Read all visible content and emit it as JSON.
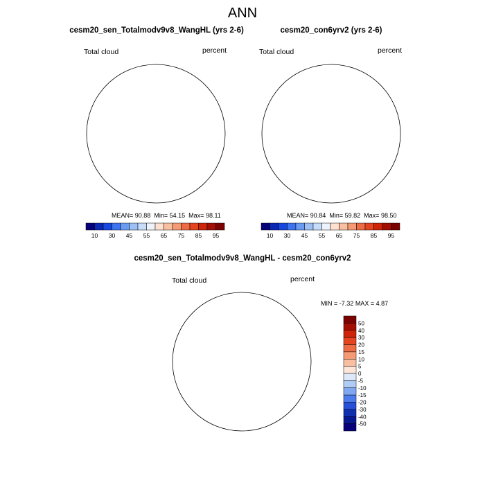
{
  "title": "ANN",
  "panels": [
    {
      "title": "cesm20_sen_Totalmodv9v8_WangHL (yrs 2-6)",
      "variable": "Total cloud",
      "units": "percent",
      "stats": {
        "mean": "90.88",
        "min": "54.15",
        "max": "98.11"
      }
    },
    {
      "title": "cesm20_con6yrv2 (yrs 2-6)",
      "variable": "Total cloud",
      "units": "percent",
      "stats": {
        "mean": "90.84",
        "min": "59.82",
        "max": "98.50"
      }
    },
    {
      "title": "cesm20_sen_Totalmodv9v8_WangHL - cesm20_con6yrv2",
      "variable": "Total cloud",
      "units": "percent",
      "stats": {
        "min": "-7.32",
        "max": "4.87"
      }
    }
  ],
  "stat_labels": {
    "mean": "MEAN=",
    "min": "Min=",
    "max": "Max=",
    "diff_min": "MIN =",
    "diff_max": "MAX ="
  },
  "chart_data": [
    {
      "type": "heatmap",
      "projection": "south-polar-stereographic",
      "title": "cesm20_sen_Totalmodv9v8_WangHL (yrs 2-6)",
      "colorbar": {
        "orientation": "horizontal",
        "tick_labels": [
          "10",
          "30",
          "45",
          "55",
          "65",
          "75",
          "85",
          "95"
        ],
        "colors": [
          "#08007a",
          "#0a28b4",
          "#1648e0",
          "#3c74f0",
          "#6a9cf4",
          "#9cbff6",
          "#c6dcf8",
          "#eef2fa",
          "#fde0cf",
          "#f8c0a0",
          "#f49a74",
          "#ee6c44",
          "#e44420",
          "#ce2408",
          "#a20e02",
          "#7a0200"
        ]
      },
      "field_colors": {
        "ocean": "#8c0e02",
        "coast": "#c8300e",
        "interior": "#f7aa86",
        "plateau": "#fde6dc"
      }
    },
    {
      "type": "heatmap",
      "projection": "south-polar-stereographic",
      "title": "cesm20_con6yrv2 (yrs 2-6)",
      "colorbar": {
        "orientation": "horizontal",
        "tick_labels": [
          "10",
          "30",
          "45",
          "55",
          "65",
          "75",
          "85",
          "95"
        ],
        "colors": [
          "#08007a",
          "#0a28b4",
          "#1648e0",
          "#3c74f0",
          "#6a9cf4",
          "#9cbff6",
          "#c6dcf8",
          "#eef2fa",
          "#fde0cf",
          "#f8c0a0",
          "#f49a74",
          "#ee6c44",
          "#e44420",
          "#ce2408",
          "#a20e02",
          "#7a0200"
        ]
      },
      "field_colors": {
        "ocean": "#8c0e02",
        "coast": "#c8300e",
        "interior": "#f7aa86",
        "plateau": "#fde6dc"
      }
    },
    {
      "type": "heatmap",
      "projection": "south-polar-stereographic",
      "title": "cesm20_sen_Totalmodv9v8_WangHL - cesm20_con6yrv2",
      "colorbar": {
        "orientation": "vertical",
        "tick_labels": [
          "50",
          "40",
          "30",
          "20",
          "15",
          "10",
          "5",
          "0",
          "-5",
          "-10",
          "-15",
          "-20",
          "-30",
          "-40",
          "-50"
        ],
        "colors": [
          "#7a0200",
          "#a20e02",
          "#ce2408",
          "#e44420",
          "#ee6c44",
          "#f49a74",
          "#f8c0a0",
          "#fde6d8",
          "#dde9fa",
          "#b0ccf6",
          "#80a8f2",
          "#4c7cec",
          "#2650d8",
          "#1030b0",
          "#081890",
          "#08007a"
        ]
      },
      "field_colors": {
        "positive": "#fde6d8",
        "negative": "#dde9fa",
        "strong_negative": "#b6ccf4"
      }
    }
  ]
}
